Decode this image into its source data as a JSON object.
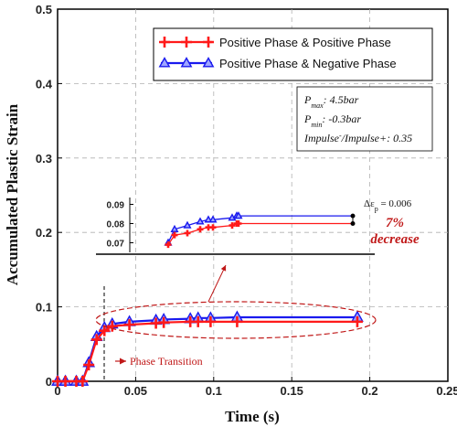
{
  "chart_data": {
    "type": "line",
    "xlabel": "Time (s)",
    "ylabel": "Accumulated Plastic Strain",
    "xlim": [
      0,
      0.25
    ],
    "ylim": [
      0,
      0.5
    ],
    "x_ticks": [
      "0",
      "0.05",
      "0.1",
      "0.15",
      "0.2",
      "0.25"
    ],
    "y_ticks": [
      "0",
      "0.1",
      "0.2",
      "0.3",
      "0.4",
      "0.5"
    ],
    "grid": true,
    "legend_position": "top-right",
    "series": [
      {
        "name": "Positive Phase & Positive Phase",
        "color": "#ff1a1a",
        "marker": "plus",
        "x": [
          0,
          0.005,
          0.012,
          0.016,
          0.02,
          0.025,
          0.03,
          0.035,
          0.046,
          0.063,
          0.068,
          0.085,
          0.09,
          0.098,
          0.115,
          0.192
        ],
        "y": [
          0,
          0,
          0,
          0,
          0.022,
          0.056,
          0.068,
          0.074,
          0.076,
          0.078,
          0.079,
          0.08,
          0.08,
          0.08,
          0.08,
          0.08
        ]
      },
      {
        "name": "Positive Phase & Negative Phase",
        "color": "#1a1aee",
        "marker": "triangle",
        "x": [
          0,
          0.005,
          0.012,
          0.016,
          0.02,
          0.025,
          0.03,
          0.035,
          0.046,
          0.063,
          0.068,
          0.085,
          0.09,
          0.098,
          0.115,
          0.192
        ],
        "y": [
          0,
          0,
          0,
          0,
          0.025,
          0.06,
          0.072,
          0.077,
          0.08,
          0.082,
          0.083,
          0.084,
          0.085,
          0.085,
          0.086,
          0.086
        ]
      }
    ],
    "parameters": [
      {
        "sym": "P",
        "sub": "max",
        "val": ": 4.5bar"
      },
      {
        "sym": "P",
        "sub": "min",
        "val": ": -0.3bar"
      },
      {
        "sym": "Impulse",
        "sub": "-",
        "val": "/Impulse+: 0.35"
      }
    ],
    "inset": {
      "ylim": [
        0.065,
        0.095
      ],
      "y_ticks": [
        "0.09",
        "0.08",
        "0.07"
      ],
      "red_y": [
        0.069,
        0.074,
        0.075,
        0.077,
        0.078,
        0.078,
        0.079,
        0.08,
        0.08,
        0.08
      ],
      "blue_y": [
        0.07,
        0.077,
        0.079,
        0.081,
        0.082,
        0.082,
        0.083,
        0.084,
        0.084,
        0.084
      ],
      "delta_label": "Δε",
      "delta_sub": "p",
      "delta_value": " = 0.006",
      "decrease_pct": "7%",
      "decrease_word": "decrease"
    },
    "annotation": "Phase Transition"
  }
}
